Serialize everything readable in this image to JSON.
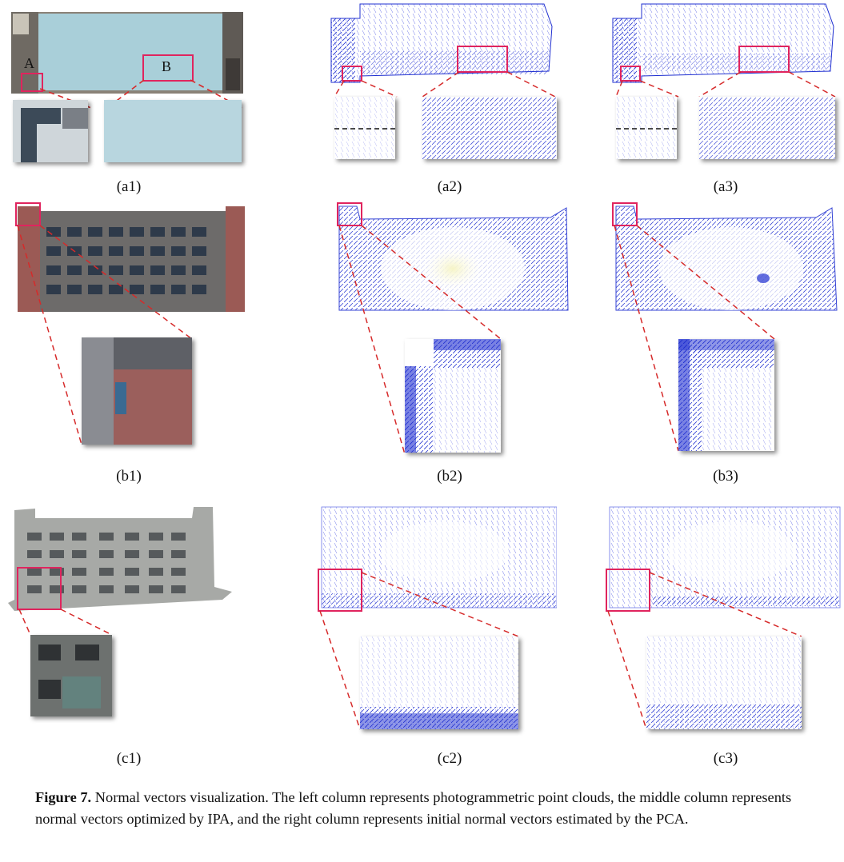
{
  "figure": {
    "panels": [
      {
        "id": "a1",
        "label": "(a1)"
      },
      {
        "id": "a2",
        "label": "(a2)"
      },
      {
        "id": "a3",
        "label": "(a3)"
      },
      {
        "id": "b1",
        "label": "(b1)"
      },
      {
        "id": "b2",
        "label": "(b2)"
      },
      {
        "id": "b3",
        "label": "(b3)"
      },
      {
        "id": "c1",
        "label": "(c1)"
      },
      {
        "id": "c2",
        "label": "(c2)"
      },
      {
        "id": "c3",
        "label": "(c3)"
      }
    ],
    "region_labels": {
      "A": "A",
      "B": "B"
    },
    "caption": {
      "lead": "Figure 7.",
      "text": " Normal vectors visualization.  The left column represents photogrammetric point clouds, the middle column represents normal vectors optimized by IPA, and the right column represents initial normal vectors estimated by the PCA."
    },
    "colors": {
      "highlight": "#e0245e",
      "dash": "#d62a2a",
      "vectors": "#1f2fd0",
      "vectors_light": "#6a74e8"
    }
  }
}
